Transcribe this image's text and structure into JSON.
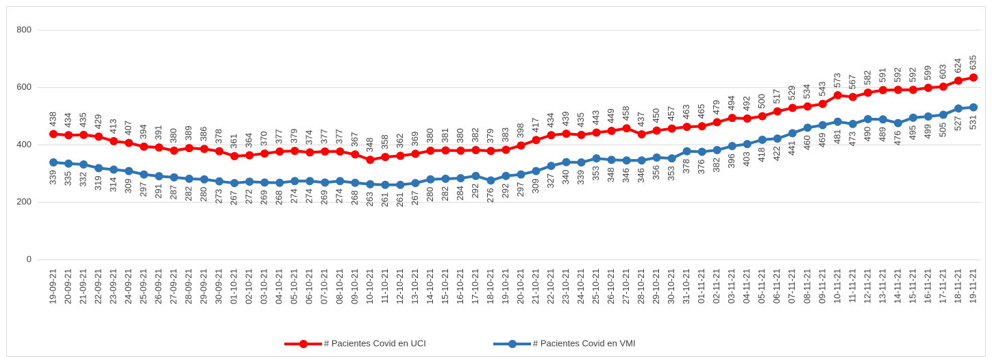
{
  "chart_data": {
    "type": "line",
    "categories": [
      "19-09-21",
      "20-09-21",
      "21-09-21",
      "22-09-21",
      "23-09-21",
      "24-09-21",
      "25-09-21",
      "26-09-21",
      "27-09-21",
      "28-09-21",
      "29-09-21",
      "30-09-21",
      "01-10-21",
      "02-10-21",
      "03-10-21",
      "04-10-21",
      "05-10-21",
      "06-10-21",
      "07-10-21",
      "08-10-21",
      "09-10-21",
      "10-10-21",
      "11-10-21",
      "12-10-21",
      "13-10-21",
      "14-10-21",
      "15-10-21",
      "16-10-21",
      "17-10-21",
      "18-10-21",
      "19-10-21",
      "20-10-21",
      "21-10-21",
      "22-10-21",
      "23-10-21",
      "24-10-21",
      "25-10-21",
      "26-10-21",
      "27-10-21",
      "28-10-21",
      "29-10-21",
      "30-10-21",
      "31-10-21",
      "01-11-21",
      "02-11-21",
      "03-11-21",
      "04-11-21",
      "05-11-21",
      "06-11-21",
      "07-11-21",
      "08-11-21",
      "09-11-21",
      "10-11-21",
      "11-11-21",
      "12-11-21",
      "13-11-21",
      "14-11-21",
      "15-11-21",
      "16-11-21",
      "17-11-21",
      "18-11-21",
      "19-11-21"
    ],
    "series": [
      {
        "name": "# Pacientes Covid en UCI",
        "color": "#ff0000",
        "values": [
          438,
          434,
          435,
          429,
          413,
          407,
          394,
          391,
          380,
          389,
          386,
          378,
          361,
          364,
          370,
          377,
          379,
          374,
          377,
          377,
          367,
          348,
          358,
          362,
          369,
          380,
          381,
          380,
          382,
          379,
          383,
          398,
          417,
          434,
          439,
          435,
          443,
          449,
          458,
          437,
          450,
          457,
          463,
          465,
          479,
          494,
          492,
          500,
          517,
          529,
          534,
          543,
          573,
          567,
          582,
          591,
          592,
          592,
          599,
          603,
          624,
          635
        ]
      },
      {
        "name": "# Pacientes Covid en VMI",
        "color": "#2e75b6",
        "values": [
          339,
          335,
          332,
          319,
          314,
          309,
          297,
          291,
          287,
          282,
          280,
          273,
          267,
          272,
          269,
          268,
          274,
          274,
          269,
          274,
          268,
          263,
          261,
          261,
          267,
          280,
          282,
          284,
          292,
          276,
          292,
          297,
          309,
          327,
          340,
          339,
          353,
          348,
          346,
          346,
          356,
          353,
          378,
          376,
          382,
          396,
          403,
          418,
          422,
          441,
          460,
          469,
          481,
          473,
          490,
          489,
          476,
          495,
          499,
          505,
          527,
          531
        ]
      }
    ],
    "ylim": [
      0,
      800
    ],
    "yticks": [
      0,
      200,
      400,
      600,
      800
    ],
    "grid": true
  }
}
